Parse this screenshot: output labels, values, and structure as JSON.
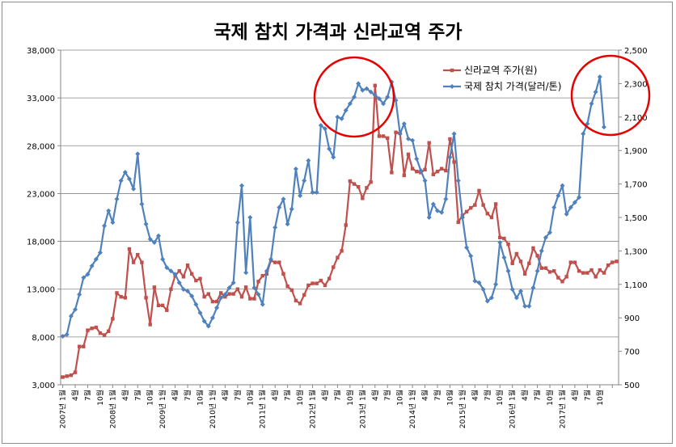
{
  "chart_data": {
    "type": "line",
    "title": "국제 참치 가격과 신라교역 주가",
    "xlabel": "",
    "ylabel_left": "",
    "ylabel_right": "",
    "ylim_left": [
      3000,
      38000
    ],
    "yticks_left": [
      "3,000",
      "8,000",
      "13,000",
      "18,000",
      "23,000",
      "28,000",
      "33,000",
      "38,000"
    ],
    "ylim_right": [
      500,
      2500
    ],
    "yticks_right": [
      "500",
      "700",
      "900",
      "1,100",
      "1,300",
      "1,500",
      "1,700",
      "1,900",
      "2,100",
      "2,300",
      "2,500"
    ],
    "x_month_label": "월",
    "x_year_ticks": [
      "2007년 1월",
      "2008년 1월",
      "2009년 1월",
      "2010년 1월",
      "2011년 1월",
      "2012년 1월",
      "2013년 1월",
      "2014년 1월",
      "2015년 1월",
      "2016년 1월",
      "2017년 1월"
    ],
    "legend_position": "top-right",
    "grid": true,
    "series": [
      {
        "name": "신라교역 주가(원)",
        "axis": "left",
        "color": "#c0504d",
        "values": [
          3800,
          3900,
          4000,
          4300,
          7000,
          7000,
          8700,
          8900,
          9000,
          8400,
          8200,
          8600,
          9900,
          12600,
          12200,
          12100,
          17200,
          15800,
          16600,
          15800,
          12100,
          9300,
          13200,
          11300,
          11300,
          10800,
          13000,
          14400,
          14900,
          14300,
          15500,
          14600,
          13900,
          14100,
          12200,
          12500,
          11700,
          11700,
          12600,
          12200,
          12500,
          12500,
          13000,
          12200,
          13200,
          12000,
          12000,
          13800,
          14400,
          14600,
          16000,
          15800,
          15800,
          14600,
          13300,
          12900,
          11800,
          11500,
          12400,
          13400,
          13600,
          13600,
          13900,
          13400,
          14100,
          15300,
          16300,
          17000,
          19700,
          24300,
          24000,
          23700,
          22500,
          23600,
          24200,
          34300,
          29000,
          29000,
          28800,
          25200,
          29400,
          29300,
          24900,
          27100,
          25600,
          25300,
          25200,
          25500,
          28300,
          25000,
          25300,
          25600,
          25400,
          28700,
          26300,
          20000,
          20700,
          21100,
          21500,
          21800,
          23300,
          21800,
          20900,
          20500,
          21900,
          18400,
          18300,
          17700,
          15700,
          16700,
          15900,
          14600,
          15700,
          17300,
          16500,
          15200,
          15200,
          14800,
          14900,
          14200,
          13800,
          14300,
          15800,
          15800,
          14900,
          14700,
          14700,
          15000,
          14300,
          15000,
          14700,
          15500,
          15800,
          15900
        ]
      },
      {
        "name": "국제 참치 가격(달러/톤)",
        "axis": "right",
        "color": "#4f81bd",
        "values": [
          790,
          800,
          910,
          950,
          1040,
          1140,
          1160,
          1210,
          1250,
          1290,
          1450,
          1540,
          1470,
          1610,
          1720,
          1770,
          1730,
          1670,
          1880,
          1580,
          1460,
          1370,
          1350,
          1390,
          1250,
          1200,
          1180,
          1160,
          1110,
          1070,
          1060,
          1030,
          980,
          930,
          880,
          850,
          900,
          960,
          1020,
          1040,
          1080,
          1110,
          1470,
          1690,
          1170,
          1500,
          1080,
          1040,
          980,
          1180,
          1250,
          1440,
          1560,
          1610,
          1460,
          1550,
          1790,
          1630,
          1720,
          1840,
          1650,
          1650,
          2050,
          2030,
          1910,
          1860,
          2100,
          2090,
          2140,
          2180,
          2220,
          2300,
          2260,
          2270,
          2250,
          2230,
          2210,
          2180,
          2220,
          2310,
          2200,
          2000,
          2060,
          1970,
          1960,
          1850,
          1780,
          1720,
          1500,
          1580,
          1540,
          1530,
          1610,
          1860,
          2000,
          1720,
          1500,
          1320,
          1270,
          1120,
          1110,
          1070,
          1000,
          1020,
          1100,
          1350,
          1260,
          1180,
          1070,
          1020,
          1060,
          970,
          970,
          1080,
          1180,
          1300,
          1380,
          1410,
          1560,
          1630,
          1690,
          1520,
          1560,
          1590,
          1620,
          2000,
          2060,
          2180,
          2250,
          2340,
          2040
        ]
      }
    ]
  }
}
